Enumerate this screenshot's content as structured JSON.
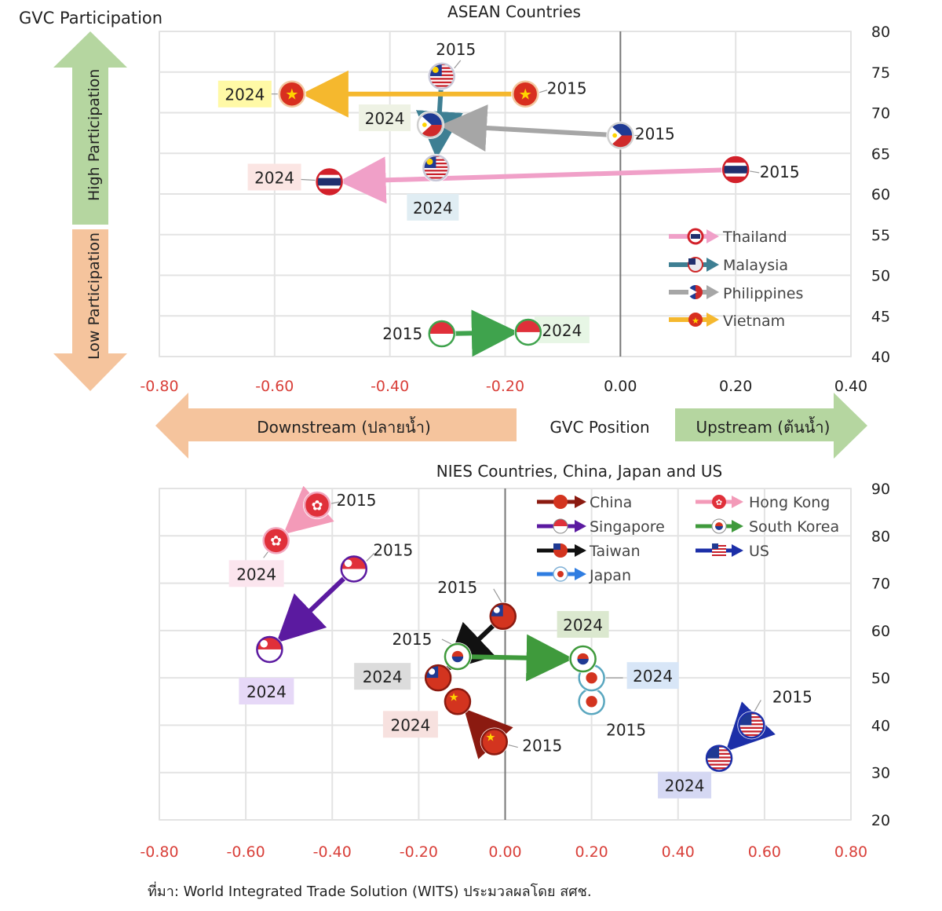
{
  "header": {
    "ylabel": "GVC Participation"
  },
  "axis_arrows": {
    "high": "High Participation",
    "low": "Low Participation",
    "downstream": "Downstream (ปลายน้ำ)",
    "upstream": "Upstream (ต้นน้ำ)",
    "xlabel": "GVC Position"
  },
  "source": "ที่มา: World Integrated Trade Solution (WITS) ประมวลผลโดย สศช.",
  "chart_data": [
    {
      "type": "scatter",
      "title": "ASEAN Countries",
      "xlabel": "GVC Position",
      "ylabel": "GVC Participation",
      "xlim": [
        -0.8,
        0.4
      ],
      "ylim": [
        40,
        80
      ],
      "x_ticks": [
        "-0.80",
        "-0.60",
        "-0.40",
        "-0.20",
        "0.00",
        "0.20",
        "0.40"
      ],
      "y_ticks": [
        "40",
        "45",
        "50",
        "55",
        "60",
        "65",
        "70",
        "75",
        "80"
      ],
      "legend": [
        "Thailand",
        "Malaysia",
        "Philippines",
        "Vietnam"
      ],
      "series": [
        {
          "name": "Thailand",
          "color": "#f0a0c8",
          "from": {
            "label": "2015",
            "x": 0.2,
            "y": 63
          },
          "to": {
            "label": "2024",
            "x": -0.505,
            "y": 61.5
          }
        },
        {
          "name": "Malaysia",
          "color": "#3e7f93",
          "from": {
            "label": "2015",
            "x": -0.31,
            "y": 74.5
          },
          "to": {
            "label": "2024",
            "x": -0.32,
            "y": 63.2
          }
        },
        {
          "name": "Philippines",
          "color": "#a6a6a6",
          "from": {
            "label": "2015",
            "x": 0.0,
            "y": 67.2
          },
          "to": {
            "label": "2024",
            "x": -0.33,
            "y": 68.5
          }
        },
        {
          "name": "Vietnam",
          "color": "#f5b82e",
          "from": {
            "label": "2015",
            "x": -0.165,
            "y": 72.3
          },
          "to": {
            "label": "2024",
            "x": -0.57,
            "y": 72.3
          }
        },
        {
          "name": "",
          "color": "#3fa34d",
          "from": {
            "label": "2015",
            "x": -0.31,
            "y": 42.8
          },
          "to": {
            "label": "2024",
            "x": -0.16,
            "y": 43.0
          }
        }
      ]
    },
    {
      "type": "scatter",
      "title": "NIES Countries, China, Japan and US",
      "xlabel": "",
      "ylabel": "",
      "xlim": [
        -0.8,
        0.8
      ],
      "ylim": [
        20,
        90
      ],
      "x_ticks": [
        "-0.80",
        "-0.60",
        "-0.40",
        "-0.20",
        "0.00",
        "0.20",
        "0.40",
        "0.60",
        "0.80"
      ],
      "y_ticks": [
        "20",
        "30",
        "40",
        "50",
        "60",
        "70",
        "80",
        "90"
      ],
      "legend": [
        "China",
        "Singapore",
        "Taiwan",
        "Japan",
        "Hong Kong",
        "South Korea",
        "US"
      ],
      "series": [
        {
          "name": "China",
          "color": "#8b1a10",
          "from": {
            "label": "2015",
            "x": -0.025,
            "y": 36.5
          },
          "to": {
            "label": "2024",
            "x": -0.11,
            "y": 45
          }
        },
        {
          "name": "Singapore",
          "color": "#5b1aa0",
          "from": {
            "label": "2015",
            "x": -0.35,
            "y": 73
          },
          "to": {
            "label": "2024",
            "x": -0.545,
            "y": 56
          }
        },
        {
          "name": "Taiwan",
          "color": "#111111",
          "from": {
            "label": "2015",
            "x": -0.005,
            "y": 63
          },
          "to": {
            "label": "2024",
            "x": -0.155,
            "y": 50
          }
        },
        {
          "name": "Japan",
          "color": "#2f7de1",
          "from": {
            "label": "2015",
            "x": 0.2,
            "y": 45
          },
          "to": {
            "label": "2024",
            "x": 0.2,
            "y": 50
          }
        },
        {
          "name": "Hong Kong",
          "color": "#f39ab8",
          "from": {
            "label": "2015",
            "x": -0.435,
            "y": 86.5
          },
          "to": {
            "label": "2024",
            "x": -0.53,
            "y": 79
          }
        },
        {
          "name": "South Korea",
          "color": "#3f9a3c",
          "from": {
            "label": "2015",
            "x": -0.11,
            "y": 54.5
          },
          "to": {
            "label": "2024",
            "x": 0.18,
            "y": 54
          }
        },
        {
          "name": "US",
          "color": "#1c2fa8",
          "from": {
            "label": "2015",
            "x": 0.57,
            "y": 40
          },
          "to": {
            "label": "2024",
            "x": 0.495,
            "y": 33
          }
        }
      ]
    }
  ]
}
